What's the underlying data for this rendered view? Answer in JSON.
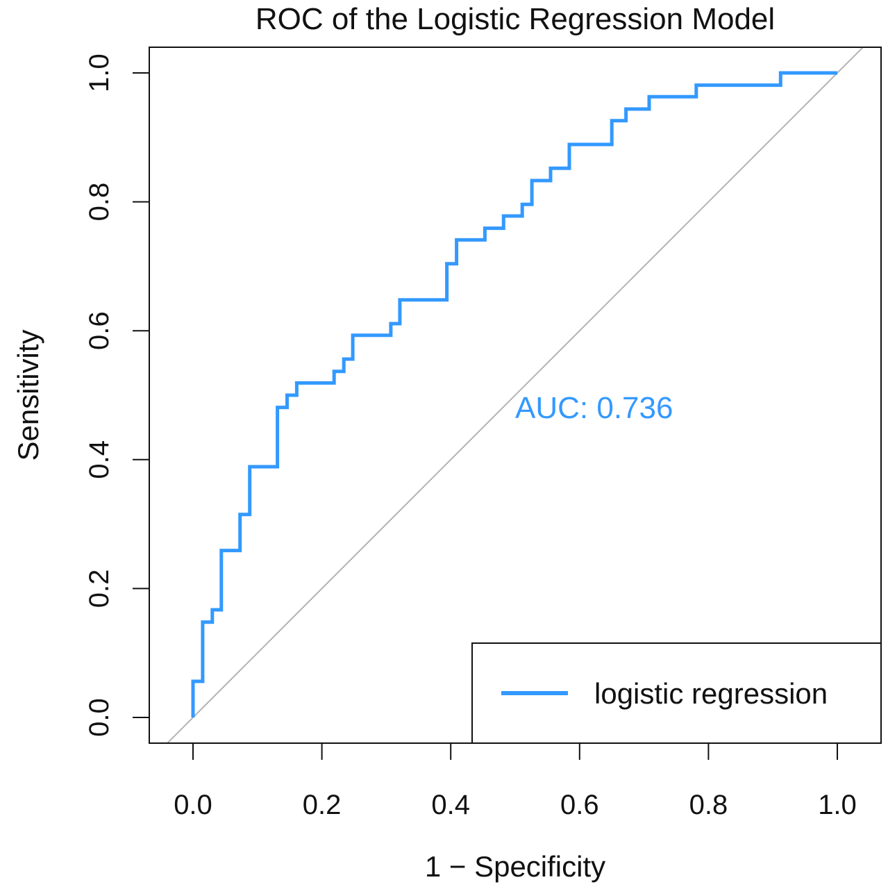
{
  "chart_data": {
    "type": "line",
    "title": "ROC of the Logistic Regression Model",
    "xlabel": "1 − Specificity",
    "ylabel": "Sensitivity",
    "xlim": [
      -0.07,
      1.07
    ],
    "ylim": [
      -0.04,
      1.04
    ],
    "xticks": [
      "0.0",
      "0.2",
      "0.4",
      "0.6",
      "0.8",
      "1.0"
    ],
    "yticks": [
      "0.0",
      "0.2",
      "0.4",
      "0.6",
      "0.8",
      "1.0"
    ],
    "grid": false,
    "legend_position": "bottom-right",
    "annotation": "AUC: 0.736",
    "series": [
      {
        "name": "logistic regression",
        "color": "#3399ff",
        "x": [
          0.0,
          0.0,
          0.015,
          0.015,
          0.03,
          0.03,
          0.044,
          0.044,
          0.073,
          0.073,
          0.088,
          0.088,
          0.131,
          0.131,
          0.146,
          0.146,
          0.161,
          0.161,
          0.219,
          0.219,
          0.234,
          0.234,
          0.248,
          0.248,
          0.307,
          0.307,
          0.321,
          0.321,
          0.394,
          0.394,
          0.409,
          0.409,
          0.453,
          0.453,
          0.482,
          0.482,
          0.511,
          0.511,
          0.526,
          0.526,
          0.555,
          0.555,
          0.584,
          0.584,
          0.65,
          0.65,
          0.672,
          0.672,
          0.708,
          0.708,
          0.781,
          0.781,
          0.912,
          0.912,
          1.0
        ],
        "y": [
          0.0,
          0.056,
          0.056,
          0.148,
          0.148,
          0.167,
          0.167,
          0.259,
          0.259,
          0.315,
          0.315,
          0.389,
          0.389,
          0.481,
          0.481,
          0.5,
          0.5,
          0.519,
          0.519,
          0.537,
          0.537,
          0.556,
          0.556,
          0.593,
          0.593,
          0.611,
          0.611,
          0.648,
          0.648,
          0.704,
          0.704,
          0.741,
          0.741,
          0.759,
          0.759,
          0.778,
          0.778,
          0.796,
          0.796,
          0.833,
          0.833,
          0.852,
          0.852,
          0.889,
          0.889,
          0.926,
          0.926,
          0.944,
          0.944,
          0.963,
          0.963,
          0.981,
          0.981,
          1.0,
          1.0
        ]
      }
    ],
    "reference_line": {
      "color": "#b3b3b3",
      "from": [
        -0.07,
        -0.07
      ],
      "to": [
        1.07,
        1.07
      ]
    }
  }
}
